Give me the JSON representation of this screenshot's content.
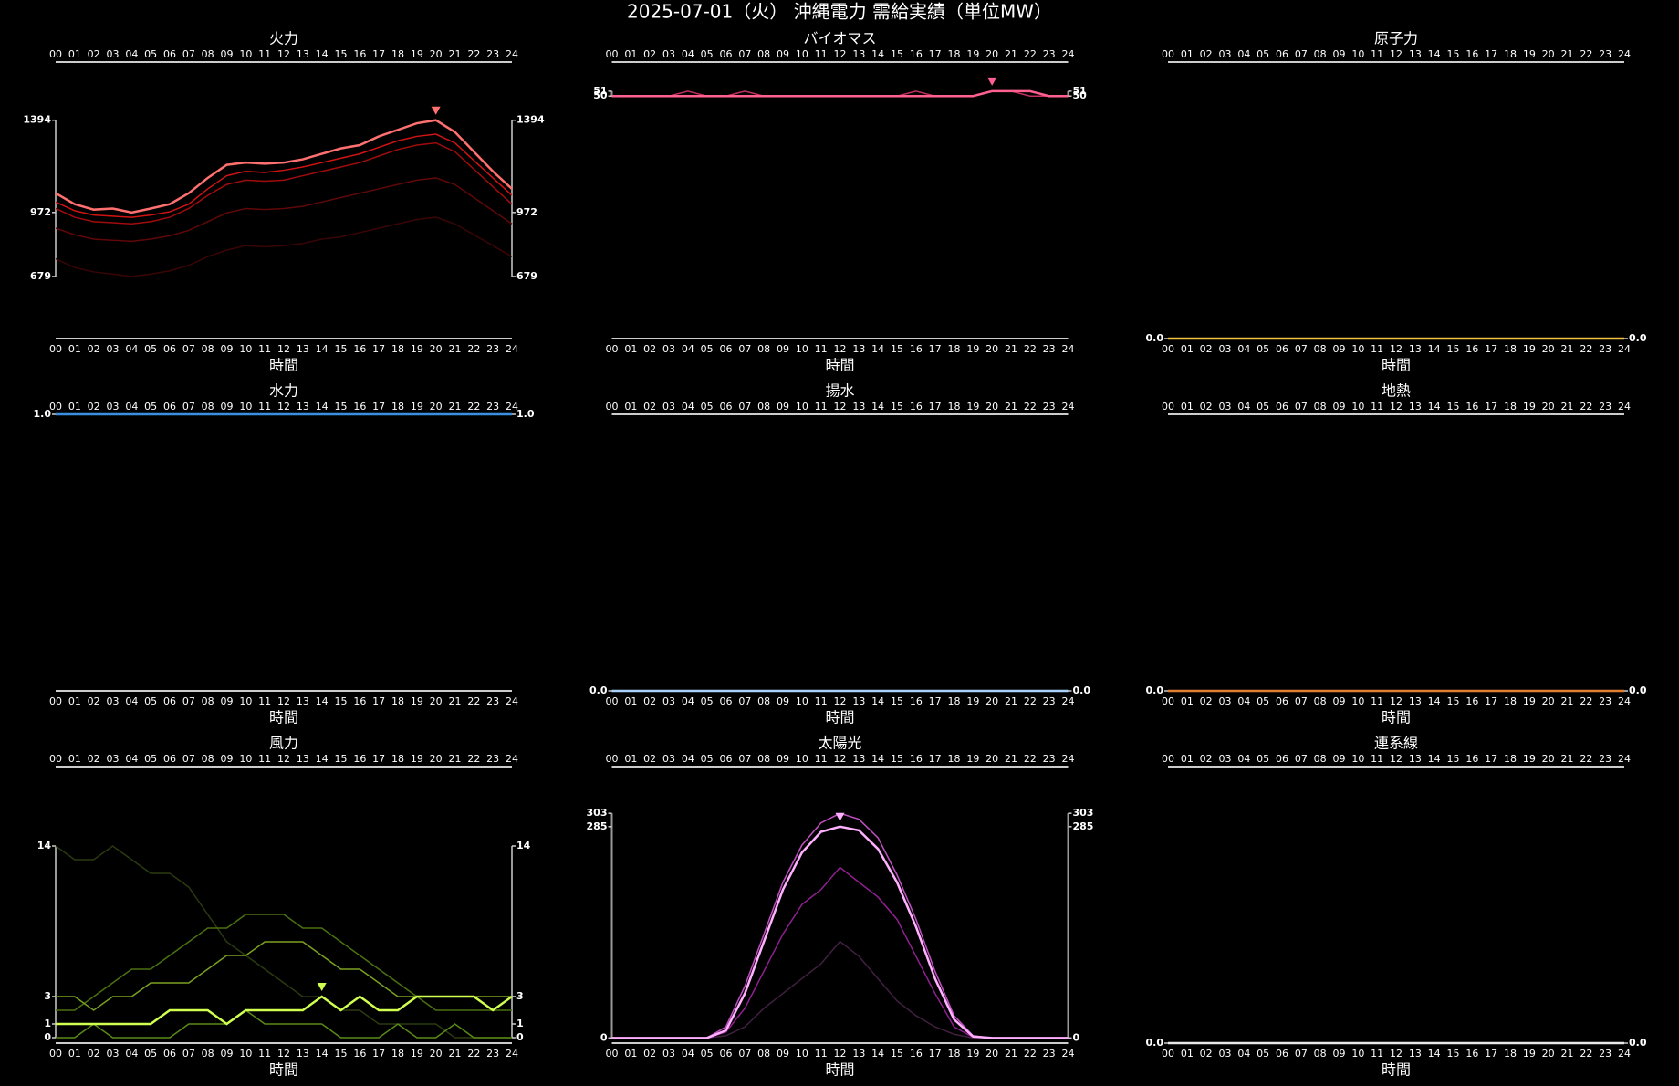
{
  "title": "2025-07-01（火） 沖縄電力 需給実績（単位MW）",
  "chart_data": [
    {
      "type": "line",
      "title": "火力",
      "xlabel": "時間",
      "categories": [
        "00",
        "01",
        "02",
        "03",
        "04",
        "05",
        "06",
        "07",
        "08",
        "09",
        "10",
        "11",
        "12",
        "13",
        "14",
        "15",
        "16",
        "17",
        "18",
        "19",
        "20",
        "21",
        "22",
        "23",
        "24"
      ],
      "ylim": [
        395,
        1660
      ],
      "yticks": [
        679,
        972,
        1394
      ],
      "series": [
        {
          "color": "#3a0505",
          "values": [
            760,
            720,
            700,
            690,
            679,
            690,
            705,
            730,
            770,
            800,
            820,
            815,
            820,
            830,
            850,
            860,
            880,
            900,
            920,
            940,
            950,
            920,
            870,
            820,
            770
          ]
        },
        {
          "color": "#600808",
          "values": [
            900,
            870,
            850,
            845,
            840,
            850,
            865,
            890,
            930,
            970,
            990,
            985,
            990,
            1000,
            1020,
            1040,
            1060,
            1080,
            1100,
            1120,
            1130,
            1100,
            1040,
            980,
            920
          ]
        },
        {
          "color": "#a00c0c",
          "values": [
            990,
            950,
            930,
            925,
            920,
            930,
            950,
            990,
            1050,
            1100,
            1120,
            1115,
            1120,
            1140,
            1160,
            1180,
            1200,
            1230,
            1260,
            1280,
            1290,
            1250,
            1170,
            1090,
            1010
          ]
        },
        {
          "color": "#d01414",
          "values": [
            1020,
            980,
            960,
            955,
            950,
            960,
            975,
            1010,
            1080,
            1140,
            1160,
            1155,
            1165,
            1180,
            1200,
            1220,
            1240,
            1270,
            1300,
            1320,
            1330,
            1290,
            1210,
            1130,
            1050
          ]
        },
        {
          "color": "#ff7070",
          "values": [
            1060,
            1010,
            985,
            990,
            972,
            990,
            1010,
            1060,
            1130,
            1190,
            1200,
            1195,
            1200,
            1215,
            1240,
            1265,
            1280,
            1320,
            1350,
            1380,
            1394,
            1340,
            1250,
            1160,
            1080
          ]
        }
      ]
    },
    {
      "type": "line",
      "title": "バイオマス",
      "xlabel": "時間",
      "categories": [
        "00",
        "01",
        "02",
        "03",
        "04",
        "05",
        "06",
        "07",
        "08",
        "09",
        "10",
        "11",
        "12",
        "13",
        "14",
        "15",
        "16",
        "17",
        "18",
        "19",
        "20",
        "21",
        "22",
        "23",
        "24"
      ],
      "ylim": [
        0,
        57
      ],
      "yticks": [
        50,
        51
      ],
      "series": [
        {
          "color": "#c03060",
          "values": [
            50,
            50,
            50,
            50,
            51,
            50,
            50,
            51,
            50,
            50,
            50,
            50,
            50,
            50,
            50,
            50,
            51,
            50,
            50,
            50,
            51,
            51,
            50,
            50,
            50
          ]
        },
        {
          "color": "#ff6090",
          "values": [
            50,
            50,
            50,
            50,
            50,
            50,
            50,
            50,
            50,
            50,
            50,
            50,
            50,
            50,
            50,
            50,
            50,
            50,
            50,
            50,
            51,
            51,
            51,
            50,
            50
          ]
        }
      ]
    },
    {
      "type": "line",
      "title": "原子力",
      "xlabel": "時間",
      "categories": [
        "00",
        "01",
        "02",
        "03",
        "04",
        "05",
        "06",
        "07",
        "08",
        "09",
        "10",
        "11",
        "12",
        "13",
        "14",
        "15",
        "16",
        "17",
        "18",
        "19",
        "20",
        "21",
        "22",
        "23",
        "24"
      ],
      "ylim": [
        0,
        1
      ],
      "yticks": [
        {
          "value": 0,
          "label": "0.0"
        }
      ],
      "series": [
        {
          "color": "#f0c040",
          "values": [
            0,
            0,
            0,
            0,
            0,
            0,
            0,
            0,
            0,
            0,
            0,
            0,
            0,
            0,
            0,
            0,
            0,
            0,
            0,
            0,
            0,
            0,
            0,
            0,
            0
          ]
        }
      ]
    },
    {
      "type": "line",
      "title": "水力",
      "xlabel": "時間",
      "categories": [
        "00",
        "01",
        "02",
        "03",
        "04",
        "05",
        "06",
        "07",
        "08",
        "09",
        "10",
        "11",
        "12",
        "13",
        "14",
        "15",
        "16",
        "17",
        "18",
        "19",
        "20",
        "21",
        "22",
        "23",
        "24"
      ],
      "ylim": [
        0,
        1
      ],
      "yticks": [
        {
          "value": 1,
          "label": "1.0"
        }
      ],
      "series": [
        {
          "color": "#3a8fe0",
          "values": [
            1,
            1,
            1,
            1,
            1,
            1,
            1,
            1,
            1,
            1,
            1,
            1,
            1,
            1,
            1,
            1,
            1,
            1,
            1,
            1,
            1,
            1,
            1,
            1,
            1
          ]
        }
      ]
    },
    {
      "type": "line",
      "title": "揚水",
      "xlabel": "時間",
      "categories": [
        "00",
        "01",
        "02",
        "03",
        "04",
        "05",
        "06",
        "07",
        "08",
        "09",
        "10",
        "11",
        "12",
        "13",
        "14",
        "15",
        "16",
        "17",
        "18",
        "19",
        "20",
        "21",
        "22",
        "23",
        "24"
      ],
      "ylim": [
        0,
        1
      ],
      "yticks": [
        {
          "value": 0,
          "label": "0.0"
        }
      ],
      "series": [
        {
          "color": "#a8d0f8",
          "values": [
            0,
            0,
            0,
            0,
            0,
            0,
            0,
            0,
            0,
            0,
            0,
            0,
            0,
            0,
            0,
            0,
            0,
            0,
            0,
            0,
            0,
            0,
            0,
            0,
            0
          ]
        }
      ]
    },
    {
      "type": "line",
      "title": "地熱",
      "xlabel": "時間",
      "categories": [
        "00",
        "01",
        "02",
        "03",
        "04",
        "05",
        "06",
        "07",
        "08",
        "09",
        "10",
        "11",
        "12",
        "13",
        "14",
        "15",
        "16",
        "17",
        "18",
        "19",
        "20",
        "21",
        "22",
        "23",
        "24"
      ],
      "ylim": [
        0,
        1
      ],
      "yticks": [
        {
          "value": 0,
          "label": "0.0"
        }
      ],
      "series": [
        {
          "color": "#e08030",
          "values": [
            0,
            0,
            0,
            0,
            0,
            0,
            0,
            0,
            0,
            0,
            0,
            0,
            0,
            0,
            0,
            0,
            0,
            0,
            0,
            0,
            0,
            0,
            0,
            0,
            0
          ]
        }
      ]
    },
    {
      "type": "line",
      "title": "風力",
      "xlabel": "時間",
      "categories": [
        "00",
        "01",
        "02",
        "03",
        "04",
        "05",
        "06",
        "07",
        "08",
        "09",
        "10",
        "11",
        "12",
        "13",
        "14",
        "15",
        "16",
        "17",
        "18",
        "19",
        "20",
        "21",
        "22",
        "23",
        "24"
      ],
      "ylim": [
        -0.4,
        19.8
      ],
      "yticks": [
        0,
        1,
        3,
        14
      ],
      "series": [
        {
          "color": "#2a3a10",
          "values": [
            14,
            13,
            13,
            14,
            13,
            12,
            12,
            11,
            9,
            7,
            6,
            5,
            4,
            3,
            3,
            2,
            2,
            1,
            1,
            1,
            1,
            0,
            0,
            0,
            0
          ]
        },
        {
          "color": "#5a8a18",
          "values": [
            0,
            0,
            1,
            0,
            0,
            0,
            0,
            1,
            1,
            1,
            2,
            1,
            1,
            1,
            1,
            0,
            0,
            0,
            1,
            0,
            0,
            1,
            0,
            0,
            0
          ]
        },
        {
          "color": "#4a7010",
          "values": [
            2,
            2,
            3,
            4,
            5,
            5,
            6,
            7,
            8,
            8,
            9,
            9,
            9,
            8,
            8,
            7,
            6,
            5,
            4,
            3,
            2,
            2,
            2,
            2,
            2
          ]
        },
        {
          "color": "#7aa020",
          "values": [
            3,
            3,
            2,
            3,
            3,
            4,
            4,
            4,
            5,
            6,
            6,
            7,
            7,
            7,
            6,
            5,
            5,
            4,
            3,
            3,
            3,
            3,
            3,
            3,
            3
          ]
        },
        {
          "color": "#d0ff50",
          "values": [
            1,
            1,
            1,
            1,
            1,
            1,
            2,
            2,
            2,
            1,
            2,
            2,
            2,
            2,
            3,
            2,
            3,
            2,
            2,
            3,
            3,
            3,
            3,
            2,
            3
          ]
        }
      ]
    },
    {
      "type": "line",
      "title": "太陽光",
      "xlabel": "時間",
      "categories": [
        "00",
        "01",
        "02",
        "03",
        "04",
        "05",
        "06",
        "07",
        "08",
        "09",
        "10",
        "11",
        "12",
        "13",
        "14",
        "15",
        "16",
        "17",
        "18",
        "19",
        "20",
        "21",
        "22",
        "23",
        "24"
      ],
      "ylim": [
        -7,
        366
      ],
      "yticks": [
        0,
        285,
        303
      ],
      "series": [
        {
          "color": "#402040",
          "values": [
            0,
            0,
            0,
            0,
            0,
            0,
            3,
            15,
            40,
            60,
            80,
            100,
            130,
            110,
            80,
            50,
            30,
            15,
            5,
            0,
            0,
            0,
            0,
            0,
            0
          ]
        },
        {
          "color": "#902090",
          "values": [
            0,
            0,
            0,
            0,
            0,
            0,
            8,
            40,
            90,
            140,
            180,
            200,
            230,
            210,
            190,
            160,
            110,
            60,
            15,
            1,
            0,
            0,
            0,
            0,
            0
          ]
        },
        {
          "color": "#c050c0",
          "values": [
            0,
            0,
            0,
            0,
            0,
            0,
            15,
            70,
            140,
            210,
            260,
            290,
            303,
            295,
            270,
            220,
            160,
            90,
            30,
            3,
            0,
            0,
            0,
            0,
            0
          ]
        },
        {
          "color": "#ffb0ff",
          "values": [
            0,
            0,
            0,
            0,
            0,
            0,
            10,
            60,
            130,
            200,
            250,
            278,
            285,
            280,
            255,
            210,
            150,
            80,
            25,
            2,
            0,
            0,
            0,
            0,
            0
          ]
        }
      ]
    },
    {
      "type": "line",
      "title": "連系線",
      "xlabel": "時間",
      "categories": [
        "00",
        "01",
        "02",
        "03",
        "04",
        "05",
        "06",
        "07",
        "08",
        "09",
        "10",
        "11",
        "12",
        "13",
        "14",
        "15",
        "16",
        "17",
        "18",
        "19",
        "20",
        "21",
        "22",
        "23",
        "24"
      ],
      "ylim": [
        0,
        1
      ],
      "yticks": [
        {
          "value": 0,
          "label": "0.0"
        }
      ],
      "series": [
        {
          "color": "#e8e8e8",
          "values": [
            0,
            0,
            0,
            0,
            0,
            0,
            0,
            0,
            0,
            0,
            0,
            0,
            0,
            0,
            0,
            0,
            0,
            0,
            0,
            0,
            0,
            0,
            0,
            0,
            0
          ]
        }
      ]
    }
  ]
}
